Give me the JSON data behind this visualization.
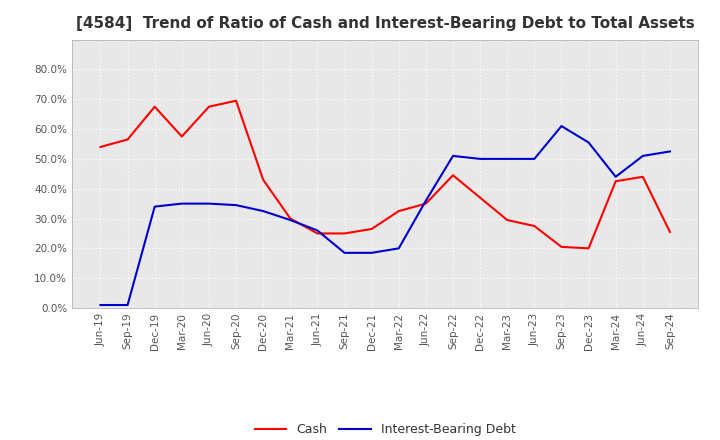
{
  "title": "[4584]  Trend of Ratio of Cash and Interest-Bearing Debt to Total Assets",
  "x_labels": [
    "Jun-19",
    "Sep-19",
    "Dec-19",
    "Mar-20",
    "Jun-20",
    "Sep-20",
    "Dec-20",
    "Mar-21",
    "Jun-21",
    "Sep-21",
    "Dec-21",
    "Mar-22",
    "Jun-22",
    "Sep-22",
    "Dec-22",
    "Mar-23",
    "Jun-23",
    "Sep-23",
    "Dec-23",
    "Mar-24",
    "Jun-24",
    "Sep-24"
  ],
  "cash": [
    54.0,
    56.5,
    67.5,
    57.5,
    67.5,
    69.5,
    43.0,
    30.0,
    25.0,
    25.0,
    26.5,
    32.5,
    35.0,
    44.5,
    37.0,
    29.5,
    27.5,
    20.5,
    20.0,
    42.5,
    44.0,
    25.5
  ],
  "debt": [
    1.0,
    1.0,
    34.0,
    35.0,
    35.0,
    34.5,
    32.5,
    29.5,
    26.0,
    18.5,
    18.5,
    20.0,
    36.0,
    51.0,
    50.0,
    50.0,
    50.0,
    61.0,
    55.5,
    44.0,
    51.0,
    52.5
  ],
  "cash_color": "#FF0000",
  "debt_color": "#0000CD",
  "bg_color": "#FFFFFF",
  "plot_bg_color": "#E8E8E8",
  "ylim": [
    0.0,
    90.0
  ],
  "yticks": [
    0.0,
    10.0,
    20.0,
    30.0,
    40.0,
    50.0,
    60.0,
    70.0,
    80.0
  ],
  "grid_color": "#FFFFFF",
  "title_fontsize": 11,
  "tick_color": "#555555",
  "legend_labels": [
    "Cash",
    "Interest-Bearing Debt"
  ]
}
